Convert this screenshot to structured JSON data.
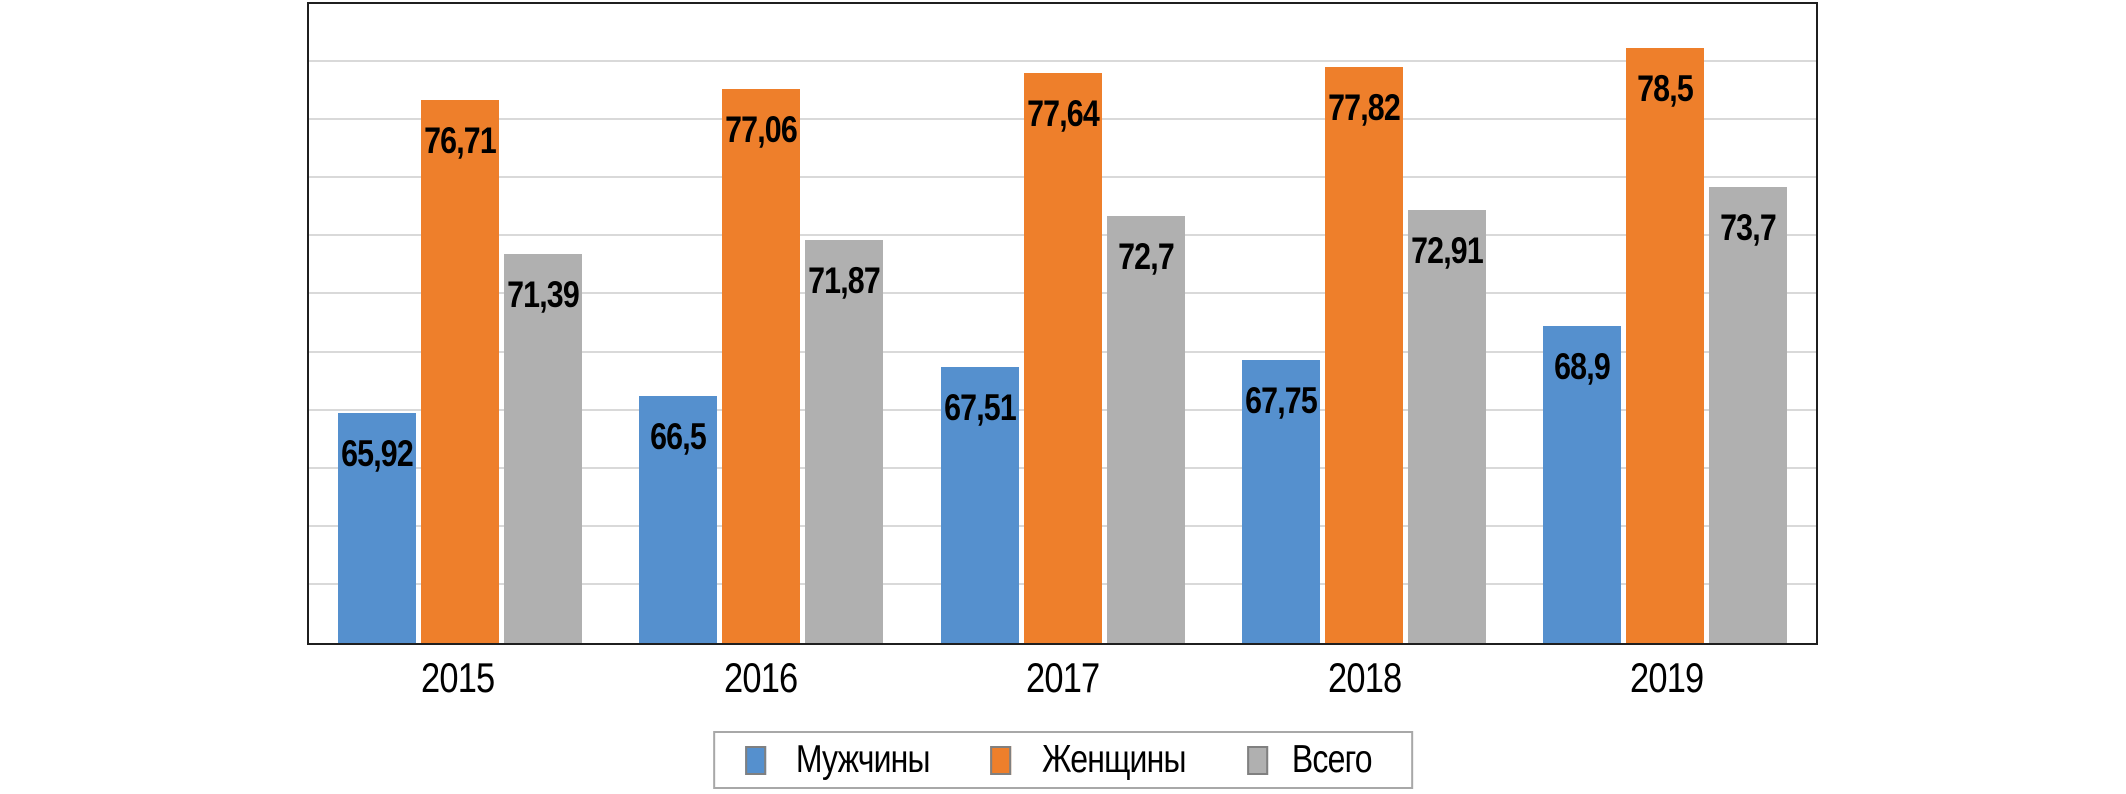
{
  "chart_data": {
    "type": "bar",
    "title": "",
    "xlabel": "",
    "ylabel": "",
    "categories": [
      "2015",
      "2016",
      "2017",
      "2018",
      "2019"
    ],
    "series": [
      {
        "key": "men",
        "name": "Мужчины",
        "color": "#5590CE",
        "values": [
          65.92,
          66.5,
          67.51,
          67.75,
          68.9
        ],
        "labels": [
          "65,92",
          "66,5",
          "67,51",
          "67,75",
          "68,9"
        ]
      },
      {
        "key": "women",
        "name": "Женщины",
        "color": "#EE7F2B",
        "values": [
          76.71,
          77.06,
          77.64,
          77.82,
          78.5
        ],
        "labels": [
          "76,71",
          "77,06",
          "77,64",
          "77,82",
          "78,5"
        ]
      },
      {
        "key": "total",
        "name": "Всего",
        "color": "#B0B0B0",
        "values": [
          71.39,
          71.87,
          72.7,
          72.91,
          73.7
        ],
        "labels": [
          "71,39",
          "71,87",
          "72,7",
          "72,91",
          "73,7"
        ]
      }
    ],
    "ylim": [
      58,
      80
    ],
    "ytick_step": 2,
    "y_axis_labels_visible": false,
    "grid": "horizontal",
    "gridline_color": "#D9D9D9",
    "frame_color": "#1F1F1F",
    "data_label_position": "inside-top",
    "label_decimal_separator": ",",
    "legend_position": "bottom-center",
    "legend_border_color": "#A8A8A8"
  }
}
